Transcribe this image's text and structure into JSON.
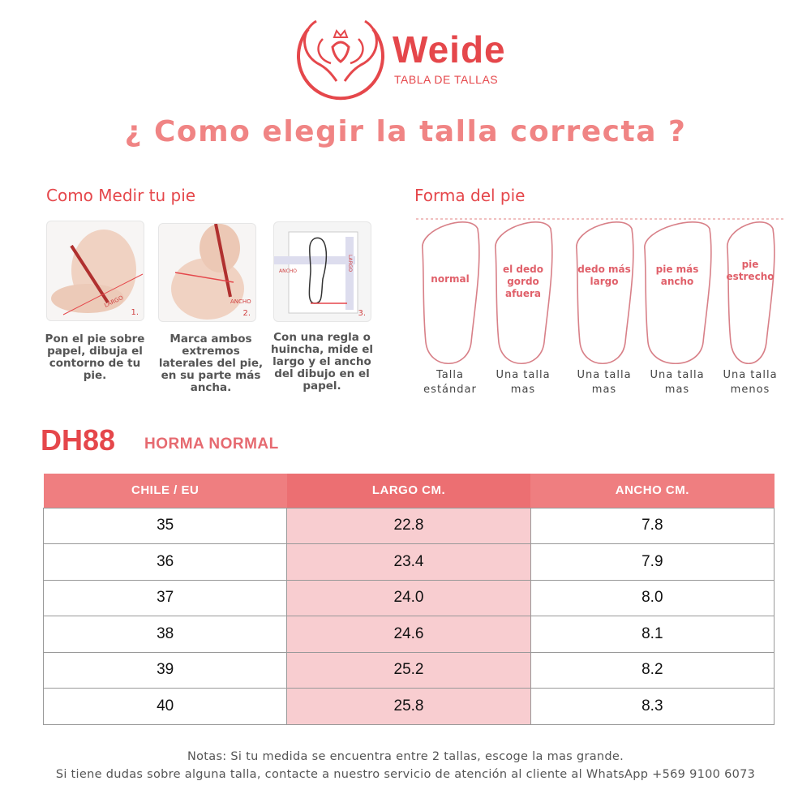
{
  "brand": {
    "name": "Weide",
    "subtitle": "TABLA DE TALLAS"
  },
  "title": "¿ Como elegir la talla correcta ?",
  "measure": {
    "heading": "Como Medir tu pie",
    "steps": [
      {
        "number": "1.",
        "photo_label": "LARGO",
        "caption": "Pon el pie sobre papel, dibuja el contorno de tu pie."
      },
      {
        "number": "2.",
        "photo_label": "ANCHO",
        "caption": "Marca ambos extremos laterales del pie, en su parte más ancha."
      },
      {
        "number": "3.",
        "photo_label": "ANCHO",
        "photo_label2": "LARGO",
        "caption": "Con una regla o huincha, mide el largo y el ancho del dibujo en el papel."
      }
    ]
  },
  "shape": {
    "heading": "Forma del pie",
    "feet": [
      {
        "label": "normal",
        "line1": "Talla",
        "line2": "estándar"
      },
      {
        "label": "el dedo gordo afuera",
        "line1": "Una talla",
        "line2": "mas"
      },
      {
        "label": "dedo más largo",
        "line1": "Una talla",
        "line2": "mas"
      },
      {
        "label": "pie más ancho",
        "line1": "Una talla",
        "line2": "mas"
      },
      {
        "label": "pie estrecho",
        "line1": "Una talla",
        "line2": "menos"
      }
    ]
  },
  "model": {
    "code": "DH88",
    "fit": "HORMA NORMAL"
  },
  "table": {
    "headers": [
      "CHILE / EU",
      "LARGO CM.",
      "ANCHO CM."
    ],
    "rows": [
      [
        "35",
        "22.8",
        "7.8"
      ],
      [
        "36",
        "23.4",
        "7.9"
      ],
      [
        "37",
        "24.0",
        "8.0"
      ],
      [
        "38",
        "24.6",
        "8.1"
      ],
      [
        "39",
        "25.2",
        "8.2"
      ],
      [
        "40",
        "25.8",
        "8.3"
      ]
    ]
  },
  "notes": {
    "line1": "Notas: Si tu medida se encuentra entre 2 tallas, escoge la mas grande.",
    "line2": "Si tiene dudas sobre alguna talla, contacte a nuestro servicio de atención al cliente al WhatsApp +569 9100 6073"
  },
  "colors": {
    "accent": "#e5474b",
    "header": "#ef7e80",
    "highlight": "#f8cdd0"
  }
}
